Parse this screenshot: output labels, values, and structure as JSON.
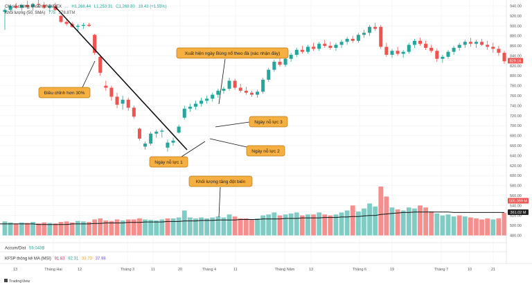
{
  "legend": {
    "symbol_title": "Chỉ số chứng khoán VNINDEX",
    "open": "...",
    "high": "H1,268.44",
    "low": "L1,253.31",
    "close": "C1,269.80",
    "change": "19.43 (+1.55%)",
    "volume_title": "Khối lượng (50, SMA)",
    "volume_value": "775",
    "volume_sma": "578.8TM",
    "accum_label": "Accum/Dist",
    "accum_value": "59.043B",
    "kfsp_label": "KFSP thống kê MA (MSI)",
    "kfsp_values": [
      "91.83",
      "92.31",
      "33.73",
      "37.98"
    ]
  },
  "price_badge": "829.16",
  "volume_badge": "505.099 M",
  "sma_badge": "361.02 M",
  "brand": "TradingView",
  "annotations": {
    "adjust": "Điều chỉnh hơn 30%",
    "breakout": "Xuất hiện ngày Bùng nổ theo đà (xác nhận đáy)",
    "effort1": "Ngày nỗ lực 1",
    "effort2": "Ngày nỗ lực 2",
    "effort3": "Ngày nỗ lực 3",
    "volume_spike": "Khối lượng tăng đột biến"
  },
  "colors": {
    "up": "#26a69a",
    "down": "#ef5350",
    "up_vol": "#80cbc4",
    "down_vol": "#f48f8d",
    "sma": "#111111",
    "callout": "#f5b041",
    "callout_border": "#b9770e",
    "trend": "#111111"
  },
  "chart_data": {
    "type": "candlestick",
    "price_axis": {
      "min": 480,
      "max": 940,
      "ticks": [
        940,
        920,
        900,
        880,
        860,
        840,
        820,
        800,
        780,
        760,
        740,
        720,
        700,
        680,
        660,
        640,
        620,
        600,
        580,
        560,
        540,
        520,
        500,
        480
      ]
    },
    "x_labels": [
      "13",
      "Tháng Hai",
      "12",
      "Tháng 3",
      "11",
      "20",
      "Tháng 4",
      "11",
      "Tháng Năm",
      "13",
      "Tháng 6",
      "19",
      "Tháng 7",
      "10",
      "21"
    ],
    "candles": [
      {
        "o": 928,
        "h": 936,
        "l": 892,
        "c": 932
      },
      {
        "o": 932,
        "h": 942,
        "l": 928,
        "c": 940
      },
      {
        "o": 940,
        "h": 946,
        "l": 934,
        "c": 936
      },
      {
        "o": 936,
        "h": 944,
        "l": 930,
        "c": 942
      },
      {
        "o": 942,
        "h": 950,
        "l": 934,
        "c": 938
      },
      {
        "o": 938,
        "h": 946,
        "l": 930,
        "c": 944
      },
      {
        "o": 944,
        "h": 952,
        "l": 938,
        "c": 942
      },
      {
        "o": 942,
        "h": 948,
        "l": 934,
        "c": 936
      },
      {
        "o": 936,
        "h": 944,
        "l": 928,
        "c": 940
      },
      {
        "o": 940,
        "h": 946,
        "l": 930,
        "c": 932
      },
      {
        "o": 920,
        "h": 922,
        "l": 906,
        "c": 908
      },
      {
        "o": 908,
        "h": 912,
        "l": 900,
        "c": 904
      },
      {
        "o": 904,
        "h": 908,
        "l": 896,
        "c": 898
      },
      {
        "o": 898,
        "h": 904,
        "l": 890,
        "c": 900
      },
      {
        "o": 900,
        "h": 906,
        "l": 894,
        "c": 902
      },
      {
        "o": 902,
        "h": 906,
        "l": 898,
        "c": 900
      },
      {
        "o": 882,
        "h": 884,
        "l": 842,
        "c": 846
      },
      {
        "o": 838,
        "h": 840,
        "l": 800,
        "c": 806
      },
      {
        "o": 780,
        "h": 790,
        "l": 770,
        "c": 776
      },
      {
        "o": 776,
        "h": 780,
        "l": 750,
        "c": 758
      },
      {
        "o": 758,
        "h": 766,
        "l": 735,
        "c": 742
      },
      {
        "o": 744,
        "h": 760,
        "l": 732,
        "c": 752
      },
      {
        "o": 752,
        "h": 756,
        "l": 730,
        "c": 736
      },
      {
        "o": 736,
        "h": 740,
        "l": 714,
        "c": 718
      },
      {
        "o": 694,
        "h": 696,
        "l": 670,
        "c": 674
      },
      {
        "o": 658,
        "h": 668,
        "l": 652,
        "c": 664
      },
      {
        "o": 664,
        "h": 688,
        "l": 660,
        "c": 684
      },
      {
        "o": 684,
        "h": 692,
        "l": 676,
        "c": 688
      },
      {
        "o": 688,
        "h": 694,
        "l": 676,
        "c": 690
      },
      {
        "o": 656,
        "h": 672,
        "l": 648,
        "c": 666
      },
      {
        "o": 666,
        "h": 676,
        "l": 660,
        "c": 670
      },
      {
        "o": 686,
        "h": 702,
        "l": 684,
        "c": 698
      },
      {
        "o": 716,
        "h": 740,
        "l": 712,
        "c": 734
      },
      {
        "o": 734,
        "h": 744,
        "l": 728,
        "c": 738
      },
      {
        "o": 738,
        "h": 750,
        "l": 732,
        "c": 744
      },
      {
        "o": 744,
        "h": 756,
        "l": 738,
        "c": 750
      },
      {
        "o": 750,
        "h": 760,
        "l": 744,
        "c": 754
      },
      {
        "o": 754,
        "h": 766,
        "l": 748,
        "c": 762
      },
      {
        "o": 762,
        "h": 774,
        "l": 756,
        "c": 770
      },
      {
        "o": 770,
        "h": 778,
        "l": 764,
        "c": 774
      },
      {
        "o": 774,
        "h": 796,
        "l": 770,
        "c": 790
      },
      {
        "o": 790,
        "h": 794,
        "l": 772,
        "c": 776
      },
      {
        "o": 776,
        "h": 784,
        "l": 766,
        "c": 770
      },
      {
        "o": 770,
        "h": 778,
        "l": 762,
        "c": 766
      },
      {
        "o": 766,
        "h": 770,
        "l": 758,
        "c": 762
      },
      {
        "o": 762,
        "h": 772,
        "l": 756,
        "c": 768
      },
      {
        "o": 768,
        "h": 796,
        "l": 764,
        "c": 792
      },
      {
        "o": 792,
        "h": 816,
        "l": 788,
        "c": 812
      },
      {
        "o": 812,
        "h": 832,
        "l": 808,
        "c": 828
      },
      {
        "o": 828,
        "h": 836,
        "l": 818,
        "c": 822
      },
      {
        "o": 822,
        "h": 838,
        "l": 818,
        "c": 834
      },
      {
        "o": 834,
        "h": 846,
        "l": 828,
        "c": 842
      },
      {
        "o": 842,
        "h": 856,
        "l": 838,
        "c": 852
      },
      {
        "o": 852,
        "h": 860,
        "l": 844,
        "c": 848
      },
      {
        "o": 848,
        "h": 862,
        "l": 844,
        "c": 858
      },
      {
        "o": 858,
        "h": 866,
        "l": 850,
        "c": 854
      },
      {
        "o": 854,
        "h": 868,
        "l": 850,
        "c": 864
      },
      {
        "o": 864,
        "h": 872,
        "l": 856,
        "c": 860
      },
      {
        "o": 860,
        "h": 868,
        "l": 852,
        "c": 856
      },
      {
        "o": 856,
        "h": 866,
        "l": 850,
        "c": 862
      },
      {
        "o": 862,
        "h": 872,
        "l": 856,
        "c": 868
      },
      {
        "o": 868,
        "h": 878,
        "l": 862,
        "c": 874
      },
      {
        "o": 874,
        "h": 880,
        "l": 866,
        "c": 870
      },
      {
        "o": 870,
        "h": 886,
        "l": 866,
        "c": 882
      },
      {
        "o": 882,
        "h": 892,
        "l": 876,
        "c": 886
      },
      {
        "o": 886,
        "h": 902,
        "l": 880,
        "c": 898
      },
      {
        "o": 898,
        "h": 906,
        "l": 890,
        "c": 894
      },
      {
        "o": 898,
        "h": 902,
        "l": 854,
        "c": 858
      },
      {
        "o": 858,
        "h": 866,
        "l": 838,
        "c": 842
      },
      {
        "o": 842,
        "h": 854,
        "l": 836,
        "c": 850
      },
      {
        "o": 850,
        "h": 858,
        "l": 840,
        "c": 844
      },
      {
        "o": 844,
        "h": 852,
        "l": 836,
        "c": 848
      },
      {
        "o": 848,
        "h": 866,
        "l": 844,
        "c": 862
      },
      {
        "o": 862,
        "h": 874,
        "l": 856,
        "c": 870
      },
      {
        "o": 870,
        "h": 876,
        "l": 860,
        "c": 864
      },
      {
        "o": 864,
        "h": 870,
        "l": 852,
        "c": 856
      },
      {
        "o": 856,
        "h": 862,
        "l": 846,
        "c": 850
      },
      {
        "o": 850,
        "h": 854,
        "l": 828,
        "c": 834
      },
      {
        "o": 834,
        "h": 842,
        "l": 826,
        "c": 838
      },
      {
        "o": 838,
        "h": 852,
        "l": 834,
        "c": 848
      },
      {
        "o": 848,
        "h": 860,
        "l": 842,
        "c": 856
      },
      {
        "o": 856,
        "h": 866,
        "l": 850,
        "c": 862
      },
      {
        "o": 862,
        "h": 872,
        "l": 856,
        "c": 868
      },
      {
        "o": 868,
        "h": 876,
        "l": 858,
        "c": 864
      },
      {
        "o": 864,
        "h": 872,
        "l": 856,
        "c": 868
      },
      {
        "o": 868,
        "h": 874,
        "l": 860,
        "c": 862
      },
      {
        "o": 862,
        "h": 870,
        "l": 852,
        "c": 858
      },
      {
        "o": 858,
        "h": 866,
        "l": 846,
        "c": 854
      },
      {
        "o": 854,
        "h": 860,
        "l": 840,
        "c": 846
      },
      {
        "o": 846,
        "h": 850,
        "l": 824,
        "c": 829
      }
    ],
    "volume": [
      {
        "v": 508,
        "up": true
      },
      {
        "v": 506,
        "up": true
      },
      {
        "v": 504,
        "up": false
      },
      {
        "v": 506,
        "up": true
      },
      {
        "v": 505,
        "up": false
      },
      {
        "v": 507,
        "up": true
      },
      {
        "v": 504,
        "up": false
      },
      {
        "v": 506,
        "up": false
      },
      {
        "v": 505,
        "up": true
      },
      {
        "v": 504,
        "up": false
      },
      {
        "v": 507,
        "up": false
      },
      {
        "v": 508,
        "up": false
      },
      {
        "v": 506,
        "up": false
      },
      {
        "v": 509,
        "up": true
      },
      {
        "v": 508,
        "up": true
      },
      {
        "v": 507,
        "up": false
      },
      {
        "v": 512,
        "up": false
      },
      {
        "v": 514,
        "up": false
      },
      {
        "v": 510,
        "up": false
      },
      {
        "v": 509,
        "up": false
      },
      {
        "v": 512,
        "up": false
      },
      {
        "v": 510,
        "up": true
      },
      {
        "v": 512,
        "up": false
      },
      {
        "v": 512,
        "up": false
      },
      {
        "v": 514,
        "up": false
      },
      {
        "v": 512,
        "up": true
      },
      {
        "v": 511,
        "up": true
      },
      {
        "v": 510,
        "up": true
      },
      {
        "v": 512,
        "up": true
      },
      {
        "v": 514,
        "up": false
      },
      {
        "v": 514,
        "up": true
      },
      {
        "v": 516,
        "up": true
      },
      {
        "v": 530,
        "up": true
      },
      {
        "v": 516,
        "up": true
      },
      {
        "v": 514,
        "up": true
      },
      {
        "v": 516,
        "up": true
      },
      {
        "v": 514,
        "up": true
      },
      {
        "v": 516,
        "up": true
      },
      {
        "v": 518,
        "up": true
      },
      {
        "v": 516,
        "up": true
      },
      {
        "v": 522,
        "up": true
      },
      {
        "v": 518,
        "up": false
      },
      {
        "v": 514,
        "up": false
      },
      {
        "v": 514,
        "up": false
      },
      {
        "v": 512,
        "up": false
      },
      {
        "v": 514,
        "up": true
      },
      {
        "v": 520,
        "up": true
      },
      {
        "v": 522,
        "up": true
      },
      {
        "v": 526,
        "up": true
      },
      {
        "v": 520,
        "up": false
      },
      {
        "v": 522,
        "up": true
      },
      {
        "v": 524,
        "up": true
      },
      {
        "v": 526,
        "up": true
      },
      {
        "v": 520,
        "up": false
      },
      {
        "v": 522,
        "up": true
      },
      {
        "v": 522,
        "up": false
      },
      {
        "v": 526,
        "up": true
      },
      {
        "v": 522,
        "up": false
      },
      {
        "v": 520,
        "up": false
      },
      {
        "v": 522,
        "up": true
      },
      {
        "v": 526,
        "up": true
      },
      {
        "v": 530,
        "up": true
      },
      {
        "v": 540,
        "up": false
      },
      {
        "v": 528,
        "up": true
      },
      {
        "v": 534,
        "up": true
      },
      {
        "v": 544,
        "up": true
      },
      {
        "v": 538,
        "up": true
      },
      {
        "v": 578,
        "up": false
      },
      {
        "v": 558,
        "up": false
      },
      {
        "v": 536,
        "up": true
      },
      {
        "v": 532,
        "up": false
      },
      {
        "v": 530,
        "up": true
      },
      {
        "v": 536,
        "up": true
      },
      {
        "v": 534,
        "up": true
      },
      {
        "v": 540,
        "up": false
      },
      {
        "v": 536,
        "up": false
      },
      {
        "v": 528,
        "up": false
      },
      {
        "v": 524,
        "up": true
      },
      {
        "v": 520,
        "up": true
      },
      {
        "v": 522,
        "up": true
      },
      {
        "v": 518,
        "up": true
      },
      {
        "v": 520,
        "up": false
      },
      {
        "v": 518,
        "up": true
      },
      {
        "v": 516,
        "up": false
      },
      {
        "v": 514,
        "up": false
      },
      {
        "v": 512,
        "up": false
      },
      {
        "v": 514,
        "up": false
      },
      {
        "v": 512,
        "up": true
      },
      {
        "v": 514,
        "up": false
      },
      {
        "v": 525,
        "up": false
      }
    ],
    "volume_sma": [
      503,
      503,
      503,
      503,
      503,
      503,
      502,
      502,
      502,
      502,
      502,
      502,
      503,
      503,
      503,
      503,
      504,
      504,
      505,
      505,
      505,
      505,
      506,
      506,
      506,
      507,
      507,
      507,
      507,
      508,
      508,
      508,
      509,
      509,
      509,
      510,
      510,
      510,
      511,
      511,
      511,
      511,
      512,
      512,
      512,
      512,
      513,
      513,
      513,
      513,
      514,
      514,
      514,
      515,
      515,
      515,
      515,
      516,
      516,
      516,
      517,
      517,
      518,
      518,
      519,
      520,
      520,
      522,
      523,
      524,
      525,
      526,
      526,
      527,
      527,
      527,
      527,
      527,
      527,
      527,
      526,
      526,
      526,
      526,
      526,
      526,
      526,
      526,
      526,
      526
    ]
  }
}
